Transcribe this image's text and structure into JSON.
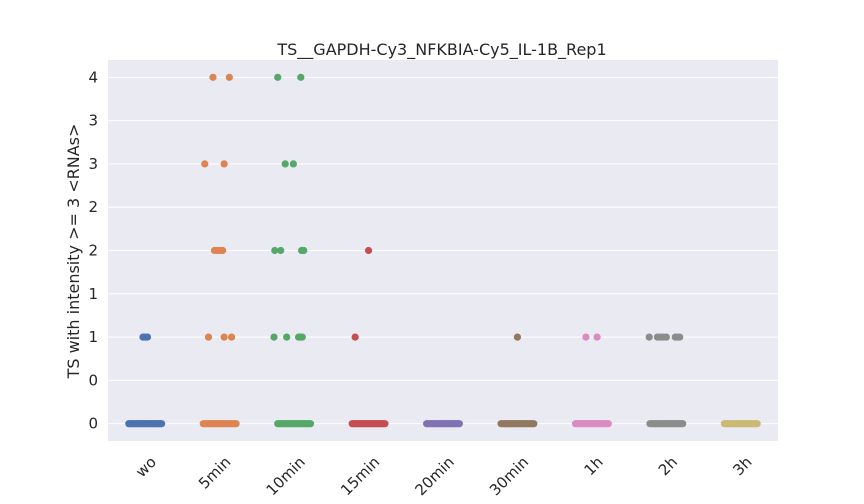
{
  "chart_data": {
    "type": "scatter",
    "subtype": "strip",
    "title": "TS__GAPDH-Cy3_NFKBIA-Cy5_IL-1B_Rep1",
    "xlabel": "",
    "ylabel": "TS with intensity >= 3 <RNAs>",
    "categories": [
      "wo",
      "5min",
      "10min",
      "15min",
      "20min",
      "30min",
      "1h",
      "2h",
      "3h"
    ],
    "ylim": [
      -0.4,
      8.4
    ],
    "yticks": [
      0,
      1,
      2,
      3,
      4,
      5,
      6,
      7,
      8
    ],
    "ytick_labels": [
      "0",
      "0",
      "1",
      "1",
      "2",
      "2",
      "3",
      "3",
      "4"
    ],
    "grid": true,
    "background": "#eaeaf2",
    "colors": [
      "#4c72b0",
      "#dd8452",
      "#55a868",
      "#c44e52",
      "#8172b3",
      "#937860",
      "#da8bc3",
      "#8c8c8c",
      "#ccb974"
    ],
    "points": [
      {
        "category": "wo",
        "values": [
          [
            0,
            0.9
          ],
          [
            2,
            0.12
          ]
        ],
        "nonzero": [
          [
            2,
            [
              -0.03,
              0.0,
              0.03
            ]
          ]
        ]
      },
      {
        "category": "5min",
        "values": [
          [
            0,
            0.9
          ]
        ],
        "nonzero": [
          [
            2,
            [
              -0.15,
              0.06,
              0.16
            ]
          ],
          [
            4,
            [
              -0.07,
              -0.03,
              0.0,
              0.04
            ]
          ],
          [
            6,
            [
              -0.2,
              0.06
            ]
          ],
          [
            8,
            [
              -0.09,
              0.13
            ]
          ]
        ]
      },
      {
        "category": "10min",
        "values": [
          [
            0,
            0.9
          ]
        ],
        "nonzero": [
          [
            2,
            [
              -0.27,
              -0.1,
              0.06,
              0.08,
              0.11
            ]
          ],
          [
            4,
            [
              -0.26,
              -0.18,
              0.1,
              0.13
            ]
          ],
          [
            6,
            [
              -0.12,
              -0.01
            ]
          ],
          [
            8,
            [
              -0.22,
              0.09
            ]
          ]
        ]
      },
      {
        "category": "15min",
        "values": [
          [
            0,
            0.9
          ]
        ],
        "nonzero": [
          [
            2,
            [
              -0.18
            ]
          ],
          [
            4,
            [
              0.0
            ]
          ]
        ]
      },
      {
        "category": "20min",
        "values": [
          [
            0,
            0.9
          ]
        ],
        "nonzero": []
      },
      {
        "category": "30min",
        "values": [
          [
            0,
            0.9
          ]
        ],
        "nonzero": [
          [
            2,
            [
              0.0
            ]
          ]
        ]
      },
      {
        "category": "1h",
        "values": [
          [
            0,
            0.9
          ]
        ],
        "nonzero": [
          [
            2,
            [
              -0.08,
              0.07
            ]
          ]
        ]
      },
      {
        "category": "2h",
        "values": [
          [
            0,
            0.9
          ]
        ],
        "nonzero": [
          [
            2,
            [
              -0.23,
              -0.12,
              -0.08,
              -0.04,
              0.0,
              0.12,
              0.15,
              0.18
            ]
          ]
        ]
      },
      {
        "category": "3h",
        "values": [
          [
            0,
            0.9
          ]
        ],
        "nonzero": []
      }
    ]
  }
}
